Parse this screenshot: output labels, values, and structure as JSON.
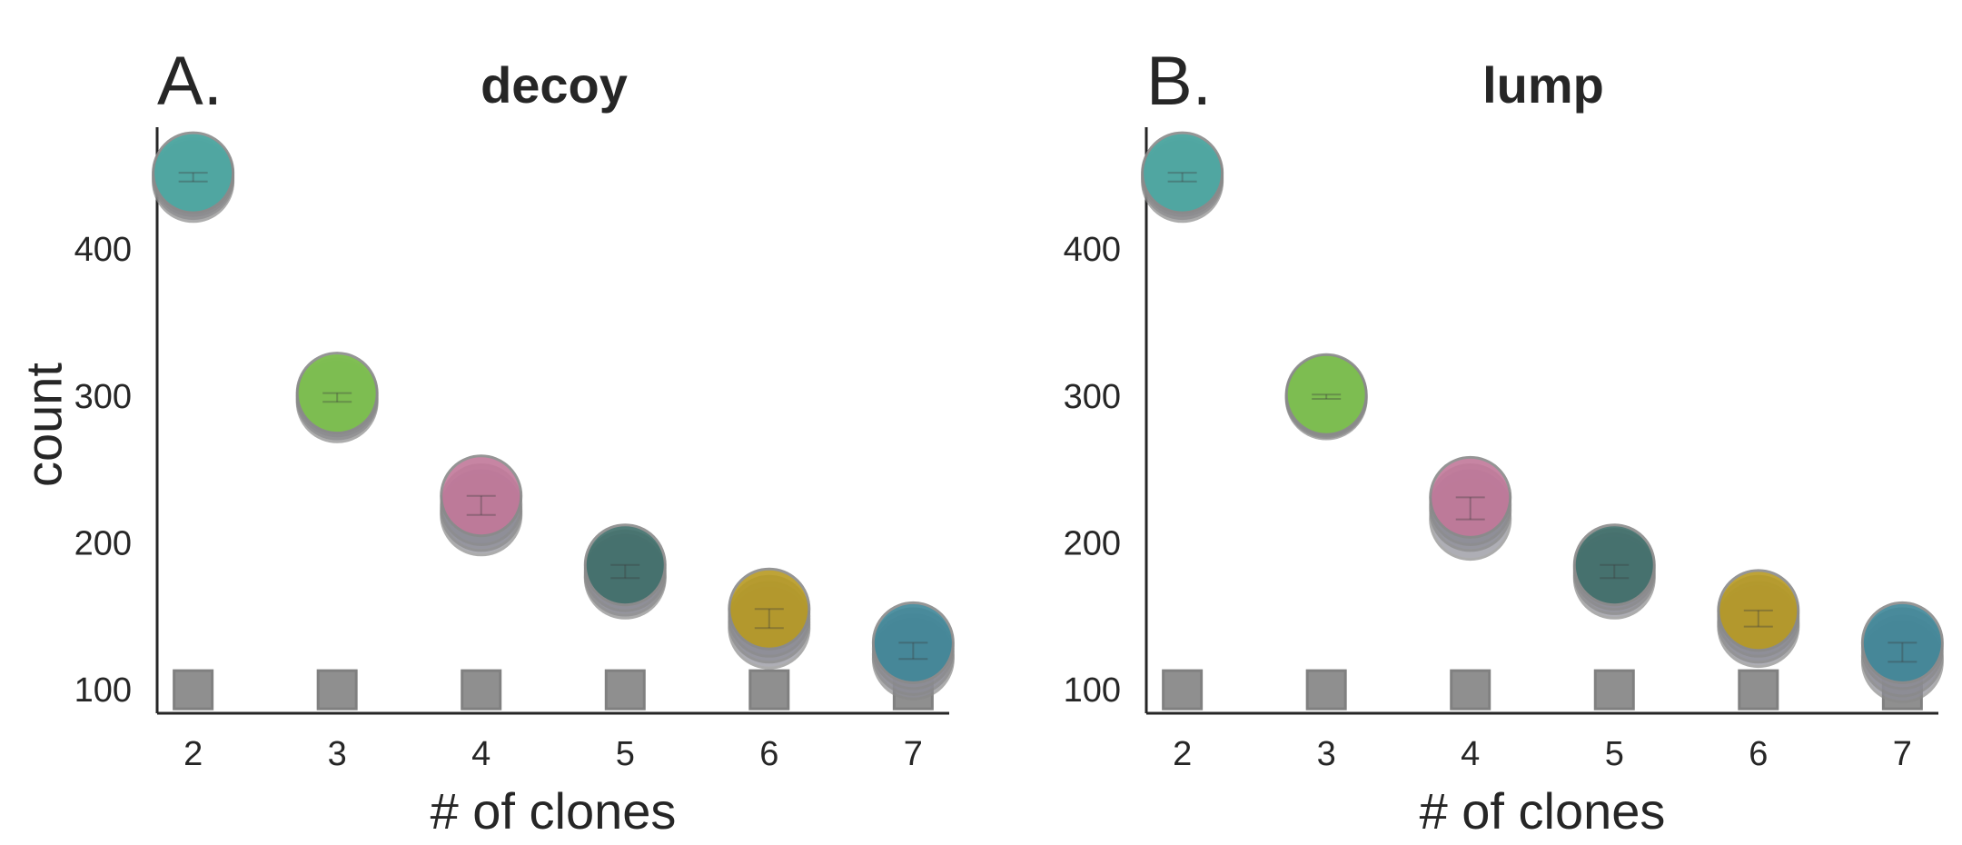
{
  "chart_data": [
    {
      "type": "scatter",
      "panel_letter": "A.",
      "title": "decoy",
      "xlabel": "# of clones",
      "ylabel": "count",
      "x": [
        2,
        3,
        4,
        5,
        6,
        7
      ],
      "xlim": [
        1.75,
        7.25
      ],
      "ylim": [
        84,
        483
      ],
      "yticks": [
        100,
        200,
        300,
        400
      ],
      "circle_series": [
        {
          "x": 2,
          "color": "#4aa9a3",
          "values": [
            450,
            448,
            452,
            446
          ]
        },
        {
          "x": 3,
          "color": "#7cc24a",
          "values": [
            302,
            298,
            300,
            296
          ]
        },
        {
          "x": 4,
          "color": "#c2789a",
          "values": [
            232,
            226,
            222,
            219
          ]
        },
        {
          "x": 5,
          "color": "#3f6e6a",
          "values": [
            185,
            181,
            178,
            176
          ]
        },
        {
          "x": 6,
          "color": "#b79a22",
          "values": [
            155,
            150,
            146,
            142
          ]
        },
        {
          "x": 7,
          "color": "#3f8799",
          "values": [
            132,
            128,
            124,
            121
          ]
        }
      ],
      "baseline": {
        "value": 100,
        "marker": "square",
        "color": "#8a8a8a"
      }
    },
    {
      "type": "scatter",
      "panel_letter": "B.",
      "title": "lump",
      "xlabel": "# of clones",
      "ylabel": "",
      "x": [
        2,
        3,
        4,
        5,
        6,
        7
      ],
      "xlim": [
        1.75,
        7.25
      ],
      "ylim": [
        84,
        483
      ],
      "yticks": [
        100,
        200,
        300,
        400
      ],
      "circle_series": [
        {
          "x": 2,
          "color": "#4aa9a3",
          "values": [
            450,
            448,
            452,
            446
          ]
        },
        {
          "x": 3,
          "color": "#7cc24a",
          "values": [
            301,
            300,
            299,
            298
          ]
        },
        {
          "x": 4,
          "color": "#c2789a",
          "values": [
            231,
            226,
            222,
            216
          ]
        },
        {
          "x": 5,
          "color": "#3f6e6a",
          "values": [
            185,
            182,
            179,
            176
          ]
        },
        {
          "x": 6,
          "color": "#b79a22",
          "values": [
            154,
            150,
            146,
            143
          ]
        },
        {
          "x": 7,
          "color": "#3f8799",
          "values": [
            132,
            128,
            123,
            119
          ]
        }
      ],
      "baseline": {
        "value": 100,
        "marker": "square",
        "color": "#8a8a8a"
      }
    }
  ]
}
